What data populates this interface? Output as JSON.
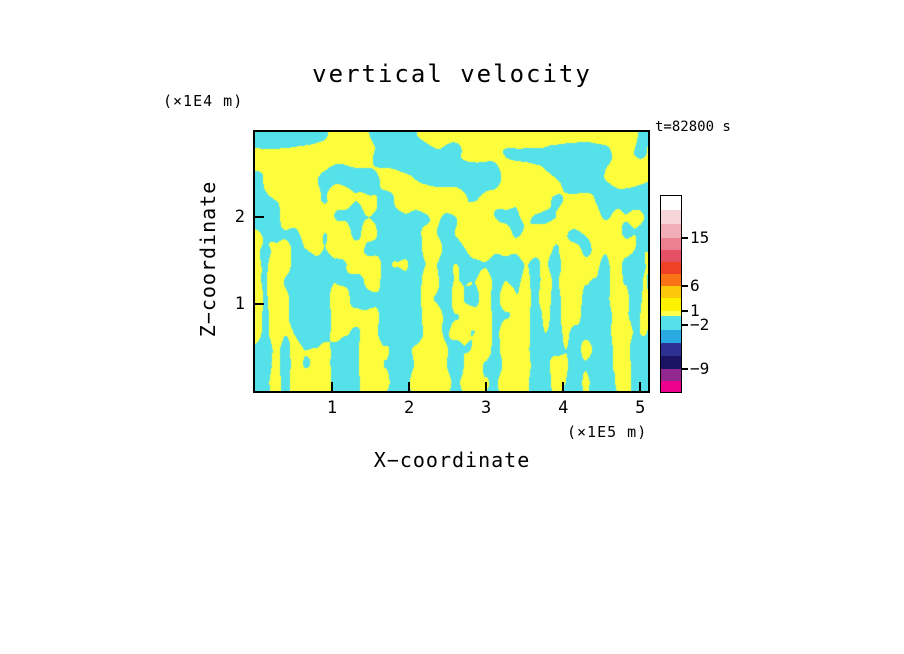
{
  "chart_data": {
    "type": "heatmap",
    "title": "vertical velocity",
    "xlabel": "X−coordinate",
    "ylabel": "Z−coordinate",
    "x_units": "(×1E5 m)",
    "y_units": "(×1E4 m)",
    "time_label": "t=82800 s",
    "x_ticks": [
      1,
      2,
      3,
      4,
      5
    ],
    "y_ticks": [
      1,
      2
    ],
    "xlim": [
      0,
      5.1
    ],
    "ylim": [
      0,
      2.98
    ],
    "field": {
      "description": "binary turbulent field: yellow patches = positive vertical velocity, cyan patches = negative vertical velocity; fine vertical streaks near the bottom, broader horizontal blobs near the top",
      "positive_color": "#fdfd3c",
      "negative_color": "#55e1e9"
    },
    "colorbar": {
      "tick_labels": [
        "15",
        "6",
        "1",
        "−2",
        "−9"
      ],
      "tick_offsets": [
        42,
        90,
        115,
        129,
        173
      ],
      "segments": [
        {
          "color": "#ffffff",
          "h": 14
        },
        {
          "color": "#f7d6da",
          "h": 14
        },
        {
          "color": "#f2aeb8",
          "h": 14
        },
        {
          "color": "#ec8090",
          "h": 12
        },
        {
          "color": "#e65064",
          "h": 12
        },
        {
          "color": "#ef4123",
          "h": 12
        },
        {
          "color": "#f97316",
          "h": 12
        },
        {
          "color": "#fdc70c",
          "h": 12
        },
        {
          "color": "#fff200",
          "h": 13
        },
        {
          "color": "#ffff4d",
          "h": 5
        },
        {
          "color": "#55e1e9",
          "h": 14
        },
        {
          "color": "#29abe2",
          "h": 13
        },
        {
          "color": "#2e3192",
          "h": 13
        },
        {
          "color": "#1b1464",
          "h": 13
        },
        {
          "color": "#92278f",
          "h": 12
        },
        {
          "color": "#ec008c",
          "h": 11
        }
      ]
    }
  },
  "render_hints": {
    "noise": {
      "streak": [
        0.1,
        0.012,
        11
      ],
      "blob": [
        0.022,
        0.045,
        29
      ],
      "detail": [
        0.06,
        0.06,
        47
      ],
      "mix_start": 0.18,
      "mix_span": 0.5,
      "detail_weight": 0.3,
      "threshold": 0.5
    }
  }
}
